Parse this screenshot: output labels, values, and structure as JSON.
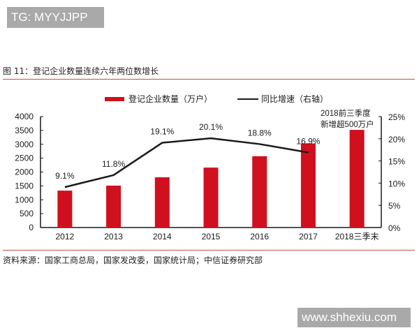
{
  "watermarks": {
    "top": "TG: MYYJJPP",
    "bottom": "www.shhexiu.com"
  },
  "figure": {
    "title": "图 11：登记企业数量连续六年两位数增长",
    "source": "资料来源：国家工商总局，国家发改委，国家统计局；中信证券研究部"
  },
  "legend": {
    "bar_label": "登记企业数量（万户）",
    "line_label": "同比增速（右轴）"
  },
  "annotation": {
    "line1": "2018前三季度",
    "line2": "新增超500万户"
  },
  "colors": {
    "bar": "#d0101e",
    "line": "#1a1a1a",
    "rule": "#c0504d",
    "watermark_bg": "#a9a9a9"
  },
  "chart_data": {
    "type": "bar",
    "title": "图 11：登记企业数量连续六年两位数增长",
    "categories": [
      "2012",
      "2013",
      "2014",
      "2015",
      "2016",
      "2017",
      "2018三季末"
    ],
    "series": [
      {
        "name": "登记企业数量（万户）",
        "type": "bar",
        "axis": "left",
        "values": [
          1330,
          1510,
          1810,
          2160,
          2570,
          3030,
          3520
        ]
      },
      {
        "name": "同比增速（右轴）",
        "type": "line",
        "axis": "right",
        "values": [
          9.1,
          11.8,
          19.1,
          20.1,
          18.8,
          16.9,
          null
        ],
        "labels": [
          "9.1%",
          "11.8%",
          "19.1%",
          "20.1%",
          "18.8%",
          "16.9%",
          ""
        ]
      }
    ],
    "y_left": {
      "ylim": [
        0,
        4000
      ],
      "ticks": [
        "0",
        "500",
        "1000",
        "1500",
        "2000",
        "2500",
        "3000",
        "3500",
        "4000"
      ]
    },
    "y_right": {
      "ylim": [
        0,
        25
      ],
      "ticks": [
        "0%",
        "5%",
        "10%",
        "15%",
        "20%",
        "25%"
      ]
    },
    "annotations": [
      "2018前三季度",
      "新增超500万户"
    ],
    "xlabel": "",
    "ylabel": "",
    "legend_position": "top",
    "grid": false
  }
}
